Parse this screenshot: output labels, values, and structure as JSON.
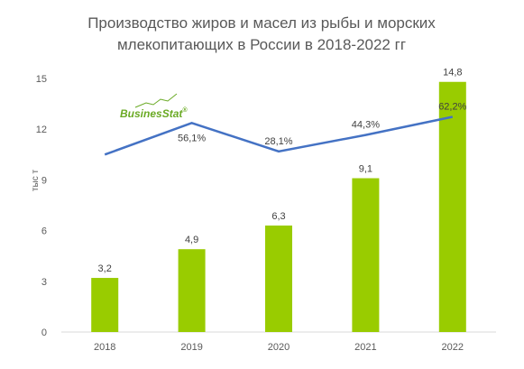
{
  "chart_data": {
    "type": "bar",
    "title_lines": [
      "Производство жиров и масел из рыбы и морских",
      "млекопитающих в России в 2018-2022 гг"
    ],
    "ylabel": "тыс т",
    "xlabel": "",
    "ylim": [
      0,
      15
    ],
    "yticks": [
      "0",
      "3",
      "6",
      "9",
      "12",
      "15"
    ],
    "ytick_values": [
      0,
      3,
      6,
      9,
      12,
      15
    ],
    "categories": [
      "2018",
      "2019",
      "2020",
      "2021",
      "2022"
    ],
    "values": [
      3.2,
      4.9,
      6.3,
      9.1,
      14.8
    ],
    "value_labels": [
      "3,2",
      "4,9",
      "6,3",
      "9,1",
      "14,8"
    ],
    "bar_color": "#99cc00",
    "line": {
      "color": "#4472c4",
      "values": [
        null,
        56.1,
        28.1,
        44.3,
        62.2
      ],
      "value_labels": [
        "",
        "56,1%",
        "28,1%",
        "44,3%",
        "62,2%"
      ],
      "ylim": [
        -150,
        100
      ],
      "start_value": 25
    },
    "grid": false,
    "legend": "none"
  },
  "logo": {
    "text_a": "Busines",
    "text_b": "Stat",
    "mark": "®",
    "color_a": "#66a61e",
    "color_b": "#66a61e"
  }
}
